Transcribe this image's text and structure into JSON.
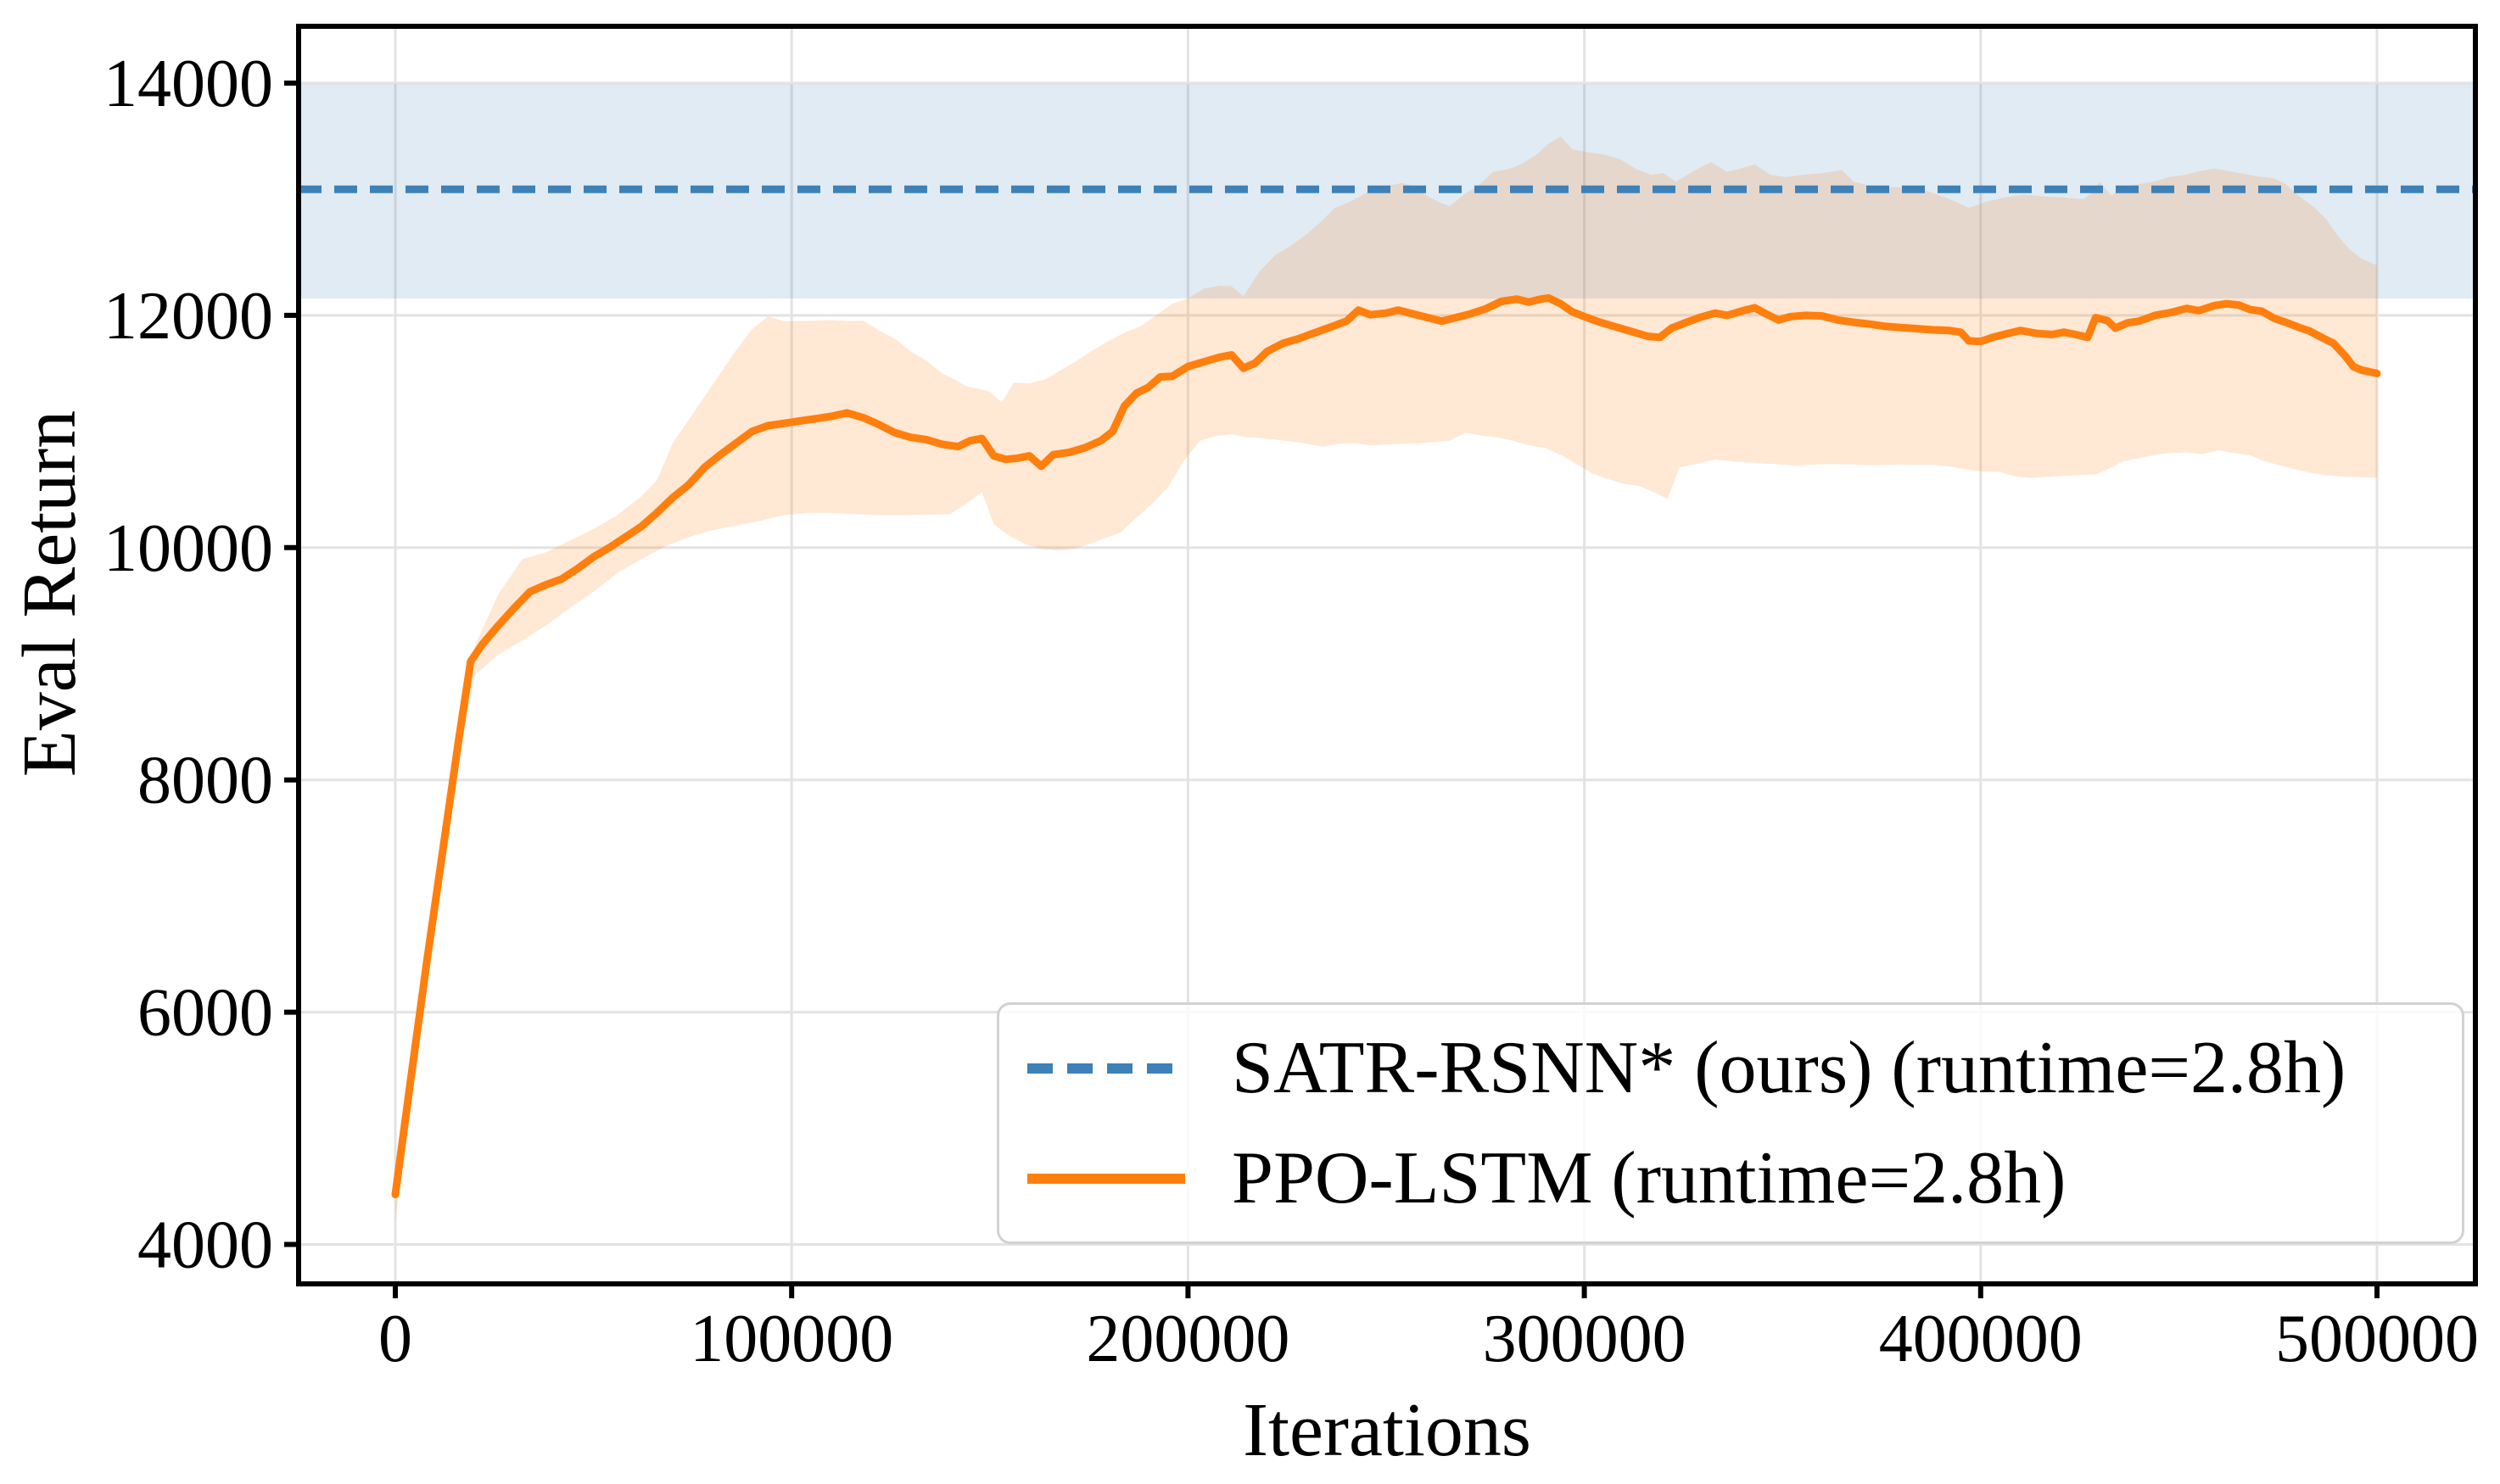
{
  "chart_data": {
    "type": "line",
    "title": "",
    "xlabel": "Iterations",
    "ylabel": "Eval Return",
    "xlim": [
      -24000,
      524000
    ],
    "ylim": [
      3660,
      14490
    ],
    "grid": true,
    "legend_position": "lower right",
    "xticks": {
      "values": [
        0,
        100000,
        200000,
        300000,
        400000,
        500000
      ],
      "labels": [
        "0",
        "100000",
        "200000",
        "300000",
        "400000",
        "500000"
      ]
    },
    "yticks": {
      "values": [
        4000,
        6000,
        8000,
        10000,
        12000,
        14000
      ],
      "labels": [
        "4000",
        "6000",
        "8000",
        "10000",
        "12000",
        "14000"
      ]
    },
    "series": [
      {
        "name": "SATR-RSNN* (ours) (runtime=2.8h)",
        "type": "hline",
        "line_style": "dashed",
        "color": "#3d81b8",
        "value": 13085,
        "band": {
          "lo": 12145,
          "hi": 13990,
          "alpha": 0.16
        }
      },
      {
        "name": "PPO-LSTM (runtime=2.8h)",
        "type": "line",
        "line_style": "solid",
        "color": "#ff7f0e",
        "band_alpha": 0.18,
        "x": [
          0,
          4000,
          8000,
          12000,
          16000,
          19000,
          22000,
          26000,
          30000,
          34000,
          38000,
          42000,
          46000,
          50000,
          54000,
          58000,
          62000,
          66000,
          70000,
          74000,
          78000,
          82000,
          86000,
          90000,
          94000,
          98000,
          102000,
          106000,
          110000,
          114000,
          118000,
          122000,
          126000,
          130000,
          134000,
          138000,
          142000,
          145000,
          148000,
          151000,
          154000,
          157000,
          160000,
          163000,
          166000,
          170000,
          174000,
          178000,
          181000,
          184000,
          187000,
          190000,
          193000,
          196000,
          200000,
          204000,
          208000,
          211000,
          214000,
          217000,
          220000,
          224000,
          228000,
          232000,
          236000,
          240000,
          243000,
          246000,
          250000,
          253000,
          256000,
          260000,
          264000,
          267000,
          271000,
          275000,
          279000,
          283000,
          286000,
          289000,
          291000,
          294000,
          297000,
          300000,
          304000,
          308000,
          312000,
          316000,
          319000,
          322000,
          325000,
          329000,
          333000,
          336000,
          340000,
          343000,
          346000,
          349000,
          352000,
          356000,
          360000,
          364000,
          368000,
          372000,
          376000,
          380000,
          384000,
          388000,
          392000,
          395000,
          397000,
          400000,
          403000,
          407000,
          410000,
          414000,
          418000,
          421000,
          424000,
          427000,
          429000,
          432000,
          434000,
          437000,
          440000,
          444000,
          448000,
          452000,
          455000,
          459000,
          462000,
          465000,
          468000,
          471000,
          474000,
          477000,
          480000,
          483000,
          486000,
          489000,
          492000,
          494000,
          496000,
          498000,
          500000
        ],
        "y": [
          4430,
          5450,
          6450,
          7400,
          8350,
          9020,
          9170,
          9330,
          9480,
          9620,
          9680,
          9730,
          9820,
          9920,
          10000,
          10090,
          10180,
          10300,
          10430,
          10540,
          10690,
          10800,
          10900,
          11000,
          11050,
          11070,
          11090,
          11110,
          11130,
          11160,
          11120,
          11060,
          10990,
          10950,
          10930,
          10890,
          10870,
          10920,
          10940,
          10790,
          10760,
          10770,
          10790,
          10700,
          10800,
          10820,
          10860,
          10920,
          11000,
          11220,
          11330,
          11380,
          11470,
          11475,
          11560,
          11600,
          11640,
          11660,
          11545,
          11590,
          11690,
          11760,
          11800,
          11850,
          11900,
          11950,
          12045,
          12005,
          12020,
          12045,
          12020,
          11985,
          11950,
          11975,
          12010,
          12055,
          12120,
          12140,
          12115,
          12140,
          12150,
          12100,
          12030,
          11990,
          11940,
          11900,
          11860,
          11820,
          11810,
          11890,
          11930,
          11980,
          12020,
          12000,
          12040,
          12065,
          12010,
          11960,
          11990,
          12000,
          11995,
          11960,
          11940,
          11925,
          11905,
          11895,
          11885,
          11875,
          11870,
          11855,
          11780,
          11775,
          11810,
          11845,
          11870,
          11845,
          11835,
          11855,
          11835,
          11810,
          11980,
          11955,
          11890,
          11935,
          11950,
          12000,
          12025,
          12060,
          12040,
          12085,
          12100,
          12090,
          12050,
          12035,
          11975,
          11940,
          11900,
          11865,
          11810,
          11760,
          11650,
          11560,
          11530,
          11515,
          11500
        ],
        "band_hi": {
          "x": [
            0,
            8000,
            16000,
            20000,
            26000,
            32000,
            38000,
            44000,
            50000,
            56000,
            62000,
            66000,
            70000,
            74000,
            78000,
            82000,
            86000,
            90000,
            94000,
            98000,
            102000,
            106000,
            110000,
            114000,
            118000,
            122000,
            126000,
            130000,
            134000,
            138000,
            141000,
            144000,
            147000,
            150000,
            153000,
            156000,
            160000,
            164000,
            168000,
            172000,
            176000,
            180000,
            184000,
            188000,
            192000,
            196000,
            200000,
            204000,
            208000,
            211000,
            214000,
            218000,
            222000,
            226000,
            230000,
            234000,
            237000,
            240000,
            243000,
            246000,
            249000,
            252000,
            254000,
            257000,
            261000,
            264000,
            266000,
            270000,
            273000,
            277000,
            281000,
            284000,
            288000,
            291000,
            294000,
            297000,
            301000,
            305000,
            309000,
            313000,
            317000,
            320000,
            323000,
            328000,
            332000,
            336000,
            340000,
            343000,
            347000,
            351000,
            355000,
            360000,
            365000,
            368000,
            372000,
            377000,
            382000,
            387000,
            391000,
            394000,
            397000,
            401000,
            406000,
            411000,
            416000,
            421000,
            426000,
            428000,
            430000,
            433000,
            436000,
            440000,
            444000,
            448000,
            451000,
            455000,
            459000,
            463000,
            467000,
            470000,
            474000,
            477000,
            480000,
            484000,
            487000,
            490000,
            493000,
            496000,
            500000
          ],
          "y": [
            4550,
            6600,
            8500,
            9150,
            9600,
            9900,
            9960,
            10060,
            10160,
            10280,
            10440,
            10580,
            10900,
            11100,
            11300,
            11500,
            11700,
            11880,
            11990,
            11950,
            11950,
            11955,
            11960,
            11950,
            11955,
            11870,
            11800,
            11690,
            11610,
            11500,
            11450,
            11390,
            11370,
            11345,
            11250,
            11420,
            11415,
            11450,
            11530,
            11610,
            11700,
            11780,
            11850,
            11905,
            12000,
            12100,
            12145,
            12230,
            12255,
            12250,
            12165,
            12375,
            12520,
            12600,
            12700,
            12820,
            12925,
            12965,
            13015,
            13075,
            13110,
            13125,
            13140,
            13110,
            13015,
            12965,
            12940,
            13050,
            13110,
            13235,
            13260,
            13300,
            13385,
            13480,
            13540,
            13430,
            13405,
            13385,
            13345,
            13260,
            13210,
            13225,
            13150,
            13250,
            13320,
            13235,
            13270,
            13300,
            13210,
            13190,
            13210,
            13225,
            13250,
            13150,
            13115,
            13105,
            13100,
            13065,
            13015,
            12975,
            12925,
            12975,
            13015,
            13040,
            13025,
            13015,
            13000,
            13060,
            13150,
            13030,
            13105,
            13130,
            13155,
            13195,
            13205,
            13240,
            13265,
            13240,
            13215,
            13195,
            13180,
            13130,
            13035,
            12935,
            12835,
            12690,
            12570,
            12490,
            12430
          ]
        },
        "band_lo": {
          "x": [
            0,
            8000,
            16000,
            20000,
            26000,
            32000,
            38000,
            44000,
            50000,
            56000,
            62000,
            68000,
            74000,
            80000,
            86000,
            92000,
            98000,
            104000,
            110000,
            116000,
            122000,
            128000,
            134000,
            140000,
            145000,
            148000,
            151000,
            155000,
            159000,
            163000,
            167000,
            171000,
            175000,
            179000,
            183000,
            187000,
            191000,
            195000,
            199000,
            203000,
            207000,
            211000,
            215000,
            218000,
            222000,
            226000,
            230000,
            234000,
            238000,
            242000,
            246000,
            250000,
            254000,
            258000,
            262000,
            266000,
            270000,
            274000,
            278000,
            282000,
            286000,
            290000,
            294000,
            298000,
            302000,
            306000,
            310000,
            314000,
            318000,
            321000,
            324000,
            328000,
            333000,
            338000,
            343000,
            348000,
            353000,
            358000,
            363000,
            368000,
            373000,
            378000,
            383000,
            388000,
            393000,
            397000,
            401000,
            405000,
            409000,
            413000,
            417000,
            421000,
            425000,
            429000,
            433000,
            436000,
            440000,
            444000,
            448000,
            452000,
            456000,
            460000,
            464000,
            468000,
            472000,
            476000,
            480000,
            484000,
            488000,
            492000,
            496000,
            500000
          ],
          "y": [
            4200,
            6300,
            8200,
            8900,
            9080,
            9200,
            9330,
            9480,
            9620,
            9780,
            9900,
            10010,
            10090,
            10150,
            10190,
            10230,
            10280,
            10300,
            10300,
            10290,
            10280,
            10280,
            10285,
            10290,
            10400,
            10480,
            10200,
            10100,
            10030,
            9990,
            9975,
            9990,
            10030,
            10080,
            10130,
            10260,
            10380,
            10520,
            10750,
            10920,
            10960,
            10975,
            10950,
            10945,
            10930,
            10915,
            10895,
            10870,
            10895,
            10900,
            10880,
            10890,
            10895,
            10900,
            10910,
            10920,
            10990,
            10965,
            10950,
            10920,
            10880,
            10860,
            10800,
            10720,
            10640,
            10590,
            10550,
            10530,
            10470,
            10420,
            10690,
            10720,
            10760,
            10740,
            10730,
            10720,
            10705,
            10715,
            10720,
            10715,
            10710,
            10715,
            10715,
            10712,
            10695,
            10670,
            10655,
            10650,
            10610,
            10600,
            10610,
            10620,
            10625,
            10630,
            10690,
            10745,
            10770,
            10800,
            10815,
            10820,
            10805,
            10840,
            10815,
            10795,
            10740,
            10705,
            10670,
            10640,
            10620,
            10612,
            10605,
            10600
          ]
        }
      }
    ]
  },
  "colors": {
    "grid": "#e3e3e3",
    "spine": "#000000",
    "background": "#ffffff",
    "text": "#000000",
    "legend_border": "#d2d2d2"
  }
}
